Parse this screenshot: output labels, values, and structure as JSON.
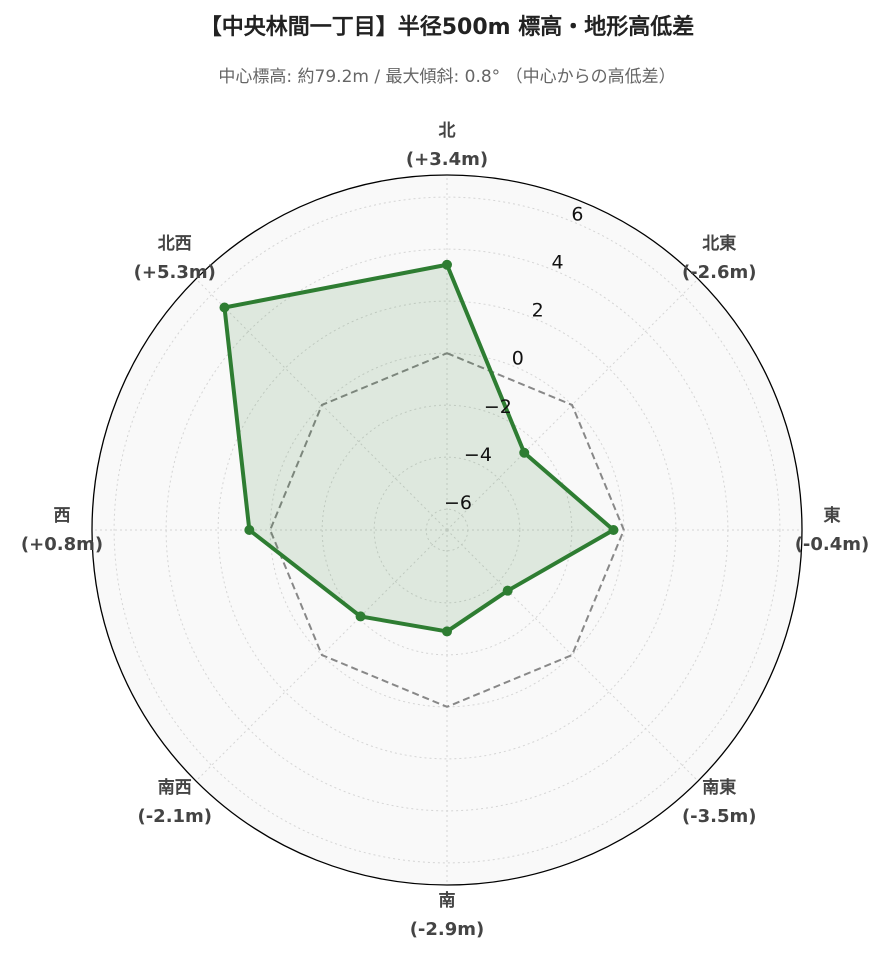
{
  "chart_data": {
    "type": "radar",
    "title": "【中央林間一丁目】半径500m 標高・地形高低差",
    "subtitle": "中心標高: 約79.2m / 最大傾斜: 0.8° （中心からの高低差）",
    "categories": [
      "北",
      "北東",
      "東",
      "南東",
      "南",
      "南西",
      "西",
      "北西"
    ],
    "series": [
      {
        "color": "#2e7d32",
        "values": [
          3.4,
          -2.6,
          -0.4,
          -3.5,
          -2.9,
          -2.1,
          0.8,
          5.3
        ],
        "value_labels": [
          "(+3.4m)",
          "(-2.6m)",
          "(-0.4m)",
          "(-3.5m)",
          "(-2.9m)",
          "(-2.1m)",
          "(+0.8m)",
          "(+5.3m)"
        ]
      }
    ],
    "reference": {
      "value": 0,
      "color": "#888888"
    },
    "ylim": [
      -6.8,
      6.85
    ],
    "yticks": [
      {
        "value": -6,
        "label": "−6"
      },
      {
        "value": -4,
        "label": "−4"
      },
      {
        "value": -2,
        "label": "−2"
      },
      0,
      2,
      4,
      6
    ],
    "grid": true
  }
}
